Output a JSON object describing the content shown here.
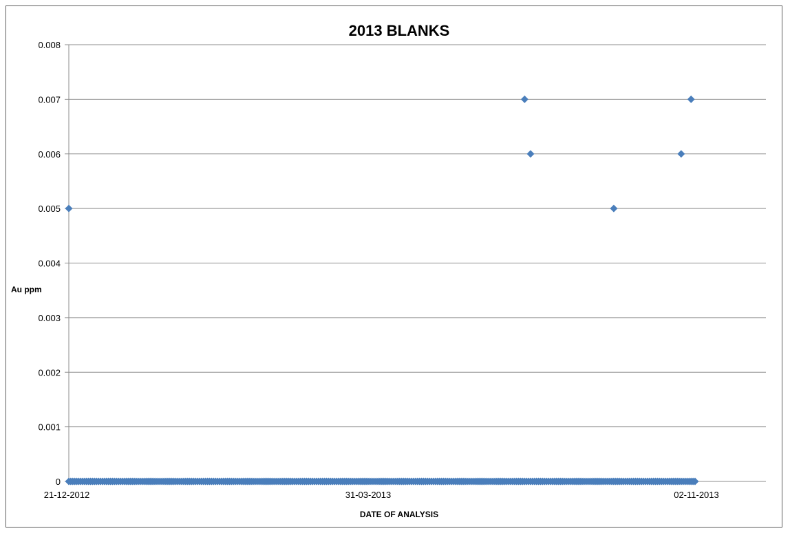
{
  "chart_data": {
    "type": "scatter",
    "title": "2013 BLANKS",
    "xlabel": "DATE OF ANALYSIS",
    "ylabel": "Au ppm",
    "x_tick_labels": [
      "21-12-2012",
      "31-03-2013",
      "02-11-2013"
    ],
    "y_tick_labels": [
      "0",
      "0.001",
      "0.002",
      "0.003",
      "0.004",
      "0.005",
      "0.006",
      "0.007",
      "0.008"
    ],
    "ylim": [
      0,
      0.008
    ],
    "grid": "horizontal",
    "legend": "none",
    "marker": "diamond",
    "color": "#4a7ebb",
    "zero_series": {
      "start": "2012-12-21",
      "end": "2013-11-02",
      "y": 0
    },
    "points": [
      {
        "x": "2012-12-21",
        "y": 0.005
      },
      {
        "x": "2013-08-08",
        "y": 0.007
      },
      {
        "x": "2013-08-11",
        "y": 0.006
      },
      {
        "x": "2013-09-22",
        "y": 0.005
      },
      {
        "x": "2013-10-26",
        "y": 0.006
      },
      {
        "x": "2013-10-31",
        "y": 0.007
      }
    ]
  }
}
